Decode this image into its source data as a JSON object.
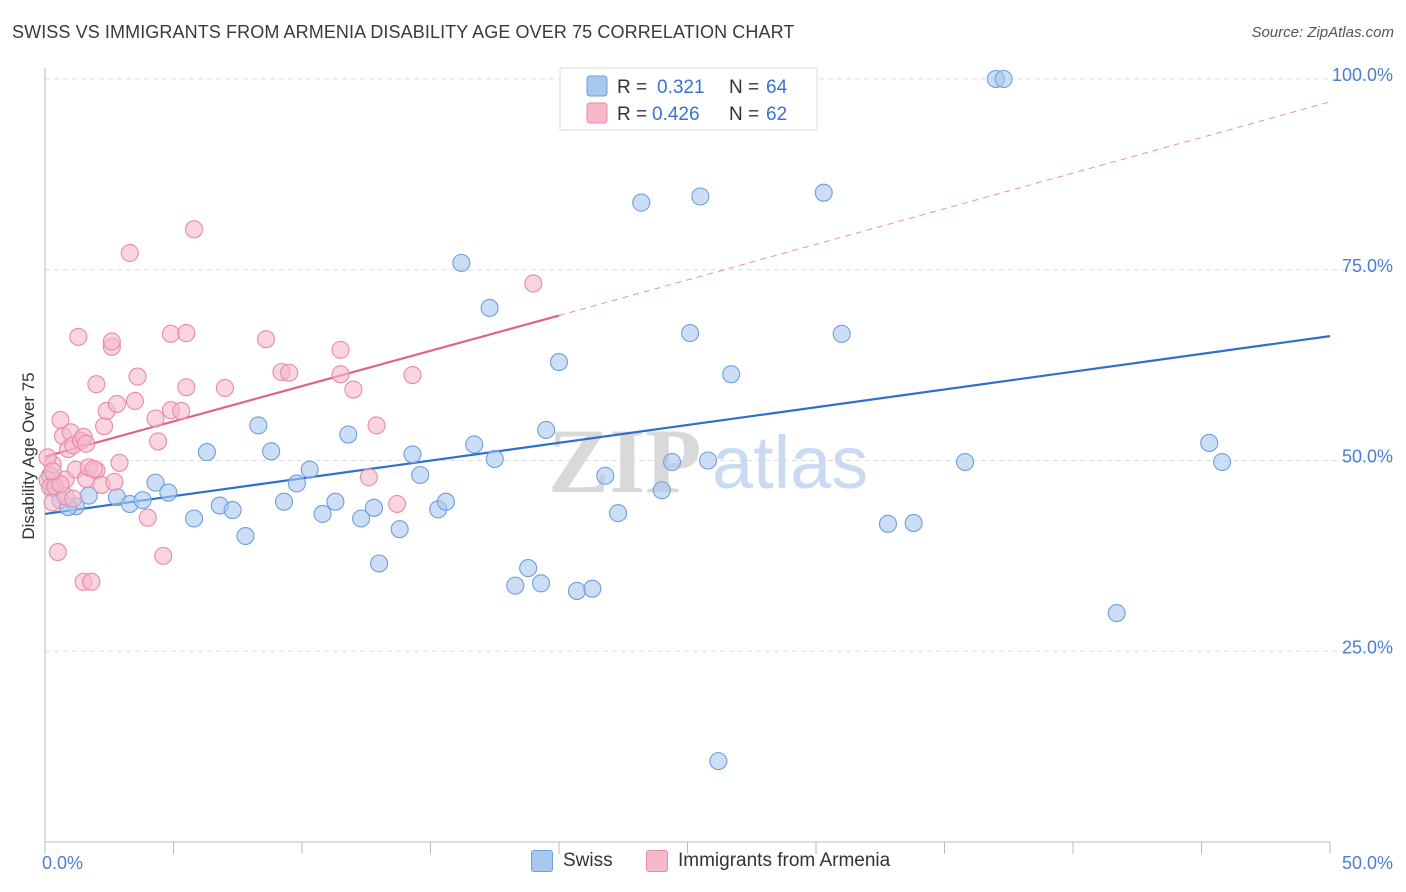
{
  "title": "SWISS VS IMMIGRANTS FROM ARMENIA DISABILITY AGE OVER 75 CORRELATION CHART",
  "source": "Source: ZipAtlas.com",
  "watermark": {
    "zip": "ZIP",
    "atlas": "atlas"
  },
  "colors": {
    "swiss_fill": "#a9c8f0",
    "swiss_stroke": "#6d9fdc",
    "swiss_line": "#2f6fce",
    "armenia_fill": "#f7b8ca",
    "armenia_stroke": "#e88aa6",
    "armenia_line": "#e0628a",
    "axis_text": "#4a7ed4",
    "grid": "#dddddd"
  },
  "legend": {
    "rows": [
      {
        "r_label": "R =",
        "r_value": "0.321",
        "n_label": "N =",
        "n_value": "64"
      },
      {
        "r_label": "R =",
        "r_value": "0.426",
        "n_label": "N =",
        "n_value": "62"
      }
    ]
  },
  "chart_data": {
    "type": "scatter",
    "title": "SWISS VS IMMIGRANTS FROM ARMENIA DISABILITY AGE OVER 75 CORRELATION CHART",
    "xlabel": "",
    "ylabel": "Disability Age Over 75",
    "xlim": [
      0,
      50
    ],
    "ylim": [
      0,
      105
    ],
    "x_tick_labels": [
      "0.0%",
      "50.0%"
    ],
    "y_ticks": [
      25,
      50,
      75,
      100
    ],
    "y_tick_labels": [
      "25.0%",
      "50.0%",
      "75.0%",
      "100.0%"
    ],
    "grid": true,
    "legend_position": "top-center",
    "series": [
      {
        "name": "Swiss",
        "points": [
          [
            0.2,
            48.0
          ],
          [
            0.6,
            44.8
          ],
          [
            1.2,
            44.0
          ],
          [
            1.7,
            45.4
          ],
          [
            2.8,
            45.2
          ],
          [
            3.3,
            44.3
          ],
          [
            3.8,
            44.8
          ],
          [
            4.3,
            47.1
          ],
          [
            4.8,
            45.8
          ],
          [
            5.8,
            42.4
          ],
          [
            6.3,
            51.1
          ],
          [
            6.8,
            44.1
          ],
          [
            7.3,
            43.5
          ],
          [
            7.8,
            40.1
          ],
          [
            8.3,
            54.6
          ],
          [
            8.8,
            51.2
          ],
          [
            9.3,
            44.6
          ],
          [
            9.8,
            47.0
          ],
          [
            10.3,
            48.8
          ],
          [
            10.8,
            43.0
          ],
          [
            11.3,
            44.6
          ],
          [
            11.8,
            53.4
          ],
          [
            12.3,
            42.4
          ],
          [
            12.8,
            43.8
          ],
          [
            13.0,
            36.5
          ],
          [
            13.8,
            41.0
          ],
          [
            14.3,
            50.8
          ],
          [
            14.6,
            48.1
          ],
          [
            15.3,
            43.6
          ],
          [
            15.6,
            44.6
          ],
          [
            16.2,
            75.9
          ],
          [
            16.7,
            52.1
          ],
          [
            17.3,
            70.0
          ],
          [
            17.5,
            50.2
          ],
          [
            18.3,
            33.6
          ],
          [
            18.8,
            35.9
          ],
          [
            19.3,
            33.9
          ],
          [
            19.5,
            54.0
          ],
          [
            20.0,
            62.9
          ],
          [
            20.7,
            32.9
          ],
          [
            21.3,
            33.2
          ],
          [
            21.8,
            48.0
          ],
          [
            22.3,
            43.1
          ],
          [
            23.2,
            83.8
          ],
          [
            24.0,
            46.1
          ],
          [
            24.4,
            49.8
          ],
          [
            25.1,
            66.7
          ],
          [
            25.5,
            84.6
          ],
          [
            25.8,
            50.0
          ],
          [
            26.2,
            10.6
          ],
          [
            26.7,
            61.3
          ],
          [
            30.3,
            85.1
          ],
          [
            31.0,
            66.6
          ],
          [
            32.8,
            41.7
          ],
          [
            33.8,
            41.8
          ],
          [
            35.8,
            49.8
          ],
          [
            37.0,
            100.0
          ],
          [
            37.3,
            100.0
          ],
          [
            28.3,
            100.0
          ],
          [
            45.3,
            52.3
          ],
          [
            45.8,
            49.8
          ],
          [
            41.7,
            30.0
          ],
          [
            0.3,
            46.4
          ],
          [
            0.9,
            43.9
          ]
        ]
      },
      {
        "name": "Immigrants from Armenia",
        "points": [
          [
            0.1,
            47.4
          ],
          [
            0.2,
            46.5
          ],
          [
            0.3,
            49.5
          ],
          [
            0.3,
            44.5
          ],
          [
            0.5,
            38.0
          ],
          [
            0.6,
            55.3
          ],
          [
            0.7,
            53.2
          ],
          [
            0.8,
            47.5
          ],
          [
            0.9,
            51.5
          ],
          [
            1.0,
            53.7
          ],
          [
            1.1,
            52.0
          ],
          [
            1.2,
            48.8
          ],
          [
            1.3,
            66.2
          ],
          [
            1.4,
            52.6
          ],
          [
            1.5,
            34.1
          ],
          [
            1.5,
            53.1
          ],
          [
            1.6,
            47.6
          ],
          [
            1.7,
            49.1
          ],
          [
            1.8,
            34.1
          ],
          [
            2.0,
            48.7
          ],
          [
            2.0,
            60.0
          ],
          [
            2.2,
            46.8
          ],
          [
            2.3,
            54.5
          ],
          [
            2.4,
            56.5
          ],
          [
            2.6,
            64.9
          ],
          [
            2.6,
            65.6
          ],
          [
            2.8,
            57.4
          ],
          [
            2.9,
            49.7
          ],
          [
            3.3,
            77.2
          ],
          [
            3.5,
            57.8
          ],
          [
            3.6,
            61.0
          ],
          [
            4.0,
            42.5
          ],
          [
            4.3,
            55.5
          ],
          [
            4.4,
            52.5
          ],
          [
            4.6,
            37.5
          ],
          [
            4.9,
            56.6
          ],
          [
            4.9,
            66.6
          ],
          [
            5.3,
            56.5
          ],
          [
            5.5,
            59.6
          ],
          [
            5.5,
            66.7
          ],
          [
            5.8,
            80.3
          ],
          [
            7.0,
            59.5
          ],
          [
            8.6,
            65.9
          ],
          [
            9.2,
            61.6
          ],
          [
            9.5,
            61.5
          ],
          [
            11.5,
            64.5
          ],
          [
            11.5,
            61.3
          ],
          [
            12.0,
            59.3
          ],
          [
            12.6,
            47.8
          ],
          [
            12.9,
            54.6
          ],
          [
            13.7,
            44.3
          ],
          [
            14.3,
            61.2
          ],
          [
            19.0,
            73.2
          ],
          [
            0.1,
            50.4
          ],
          [
            0.4,
            46.6
          ],
          [
            0.8,
            45.3
          ],
          [
            1.6,
            52.2
          ],
          [
            0.6,
            46.9
          ],
          [
            1.1,
            45.0
          ],
          [
            2.7,
            47.2
          ],
          [
            0.3,
            48.6
          ],
          [
            1.9,
            48.9
          ]
        ]
      }
    ],
    "trend_lines": [
      {
        "series": "Swiss",
        "x": [
          0,
          50
        ],
        "y": [
          43.0,
          66.3
        ]
      },
      {
        "series": "Immigrants from Armenia",
        "x": [
          0,
          20
        ],
        "y": [
          50.5,
          69.0
        ],
        "dashed_extension_to": [
          50,
          97.0
        ]
      }
    ]
  },
  "bottom_legend": {
    "items": [
      "Swiss",
      "Immigrants from Armenia"
    ]
  }
}
